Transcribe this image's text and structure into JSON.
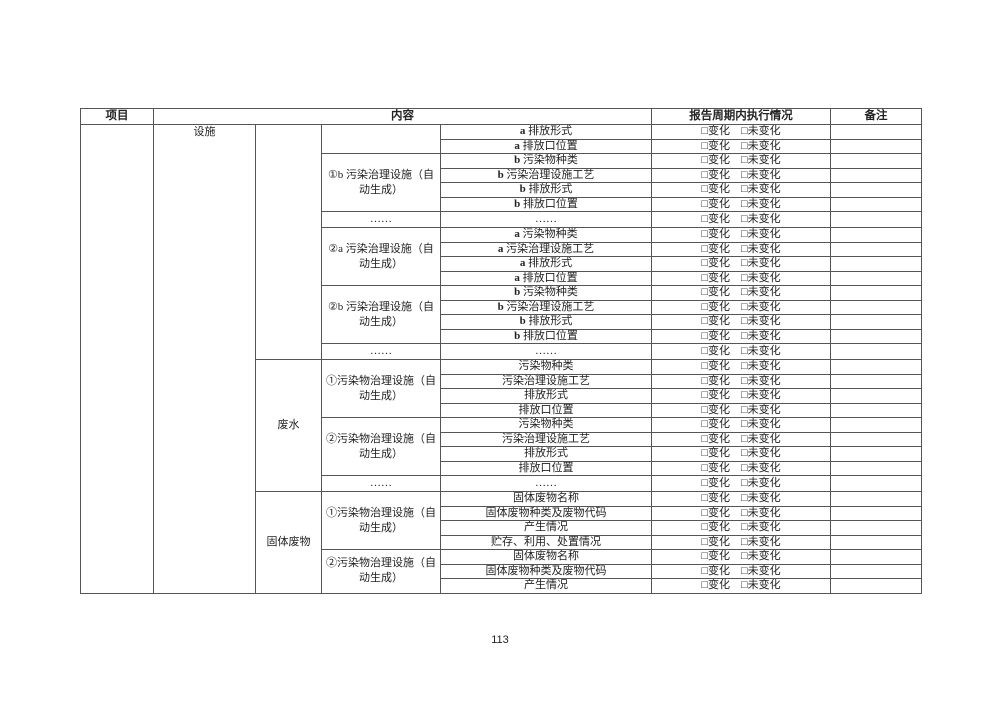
{
  "table": {
    "headers": {
      "project": "项目",
      "content": "内容",
      "status": "报告周期内执行情况",
      "remark": "备注"
    },
    "project_value": "",
    "category": "设施",
    "status_text": "□变化　□未变化",
    "sections": [
      {
        "name": "",
        "facilities": [
          {
            "name": "",
            "items": [
              "a 排放形式",
              "a 排放口位置"
            ]
          },
          {
            "name": "①b 污染治理设施（自动生成）",
            "items": [
              "b 污染物种类",
              "b 污染治理设施工艺",
              "b 排放形式",
              "b 排放口位置"
            ]
          },
          {
            "name": "……",
            "items": [
              "……"
            ]
          },
          {
            "name": "②a 污染治理设施（自动生成）",
            "items": [
              "a 污染物种类",
              "a 污染治理设施工艺",
              "a 排放形式",
              "a 排放口位置"
            ]
          },
          {
            "name": "②b 污染治理设施（自动生成）",
            "items": [
              "b 污染物种类",
              "b 污染治理设施工艺",
              "b 排放形式",
              "b 排放口位置"
            ]
          },
          {
            "name": "……",
            "items": [
              "……"
            ]
          }
        ]
      },
      {
        "name": "废水",
        "facilities": [
          {
            "name": "①污染物治理设施（自动生成）",
            "items": [
              "污染物种类",
              "污染治理设施工艺",
              "排放形式",
              "排放口位置"
            ]
          },
          {
            "name": "②污染物治理设施（自动生成）",
            "items": [
              "污染物种类",
              "污染治理设施工艺",
              "排放形式",
              "排放口位置"
            ]
          },
          {
            "name": "……",
            "items": [
              "……"
            ]
          }
        ]
      },
      {
        "name": "固体废物",
        "facilities": [
          {
            "name": "①污染物治理设施（自动生成）",
            "items": [
              "固体废物名称",
              "固体废物种类及废物代码",
              "产生情况",
              "贮存、利用、处置情况"
            ]
          },
          {
            "name": "②污染物治理设施（自动生成）",
            "items": [
              "固体废物名称",
              "固体废物种类及废物代码",
              "产生情况"
            ]
          }
        ]
      }
    ]
  },
  "page_number": "113"
}
